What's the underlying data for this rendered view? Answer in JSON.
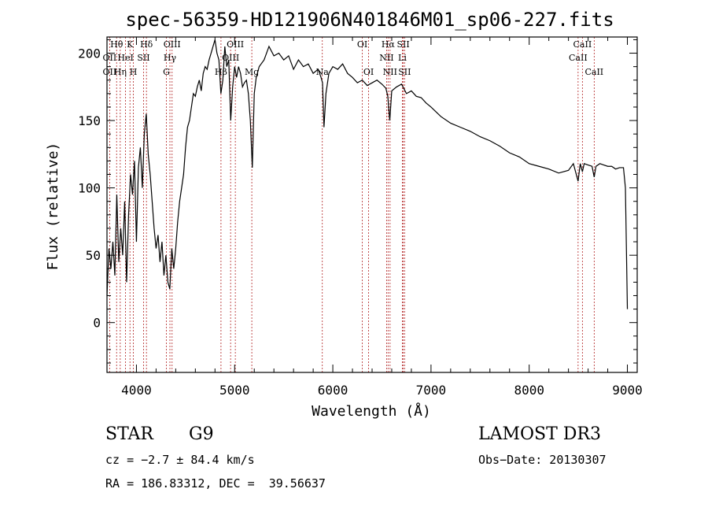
{
  "chart_data": {
    "type": "line",
    "title": "spec-56359-HD121906N401846M01_sp06-227.fits",
    "xlabel": "Wavelength (Å)",
    "ylabel": "Flux (relative)",
    "xlim": [
      3700,
      9100
    ],
    "ylim": [
      -37,
      212
    ],
    "xticks": [
      4000,
      5000,
      6000,
      7000,
      8000,
      9000
    ],
    "yticks": [
      0,
      50,
      100,
      150,
      200
    ],
    "grid": false,
    "series": [
      {
        "x": [
          3700,
          3720,
          3740,
          3760,
          3780,
          3800,
          3820,
          3840,
          3860,
          3880,
          3900,
          3920,
          3940,
          3960,
          3980,
          4000,
          4020,
          4040,
          4060,
          4080,
          4100,
          4120,
          4140,
          4160,
          4180,
          4200,
          4220,
          4240,
          4260,
          4280,
          4300,
          4320,
          4340,
          4360,
          4380,
          4400,
          4420,
          4440,
          4460,
          4480,
          4500,
          4520,
          4540,
          4560,
          4580,
          4600,
          4620,
          4640,
          4660,
          4680,
          4700,
          4720,
          4740,
          4760,
          4780,
          4800,
          4820,
          4840,
          4860,
          4880,
          4900,
          4920,
          4940,
          4960,
          4980,
          5000,
          5020,
          5040,
          5060,
          5080,
          5100,
          5120,
          5140,
          5160,
          5180,
          5200,
          5220,
          5250,
          5300,
          5350,
          5400,
          5450,
          5500,
          5550,
          5600,
          5650,
          5700,
          5750,
          5800,
          5850,
          5880,
          5895,
          5910,
          5930,
          5960,
          6000,
          6050,
          6100,
          6150,
          6200,
          6250,
          6300,
          6350,
          6400,
          6450,
          6500,
          6540,
          6560,
          6580,
          6600,
          6650,
          6700,
          6750,
          6800,
          6850,
          6900,
          6950,
          7000,
          7100,
          7200,
          7300,
          7400,
          7500,
          7600,
          7700,
          7800,
          7900,
          8000,
          8100,
          8200,
          8300,
          8400,
          8450,
          8498,
          8520,
          8542,
          8560,
          8600,
          8640,
          8662,
          8680,
          8720,
          8760,
          8800,
          8840,
          8880,
          8920,
          8960,
          8980,
          9000
        ],
        "y": [
          20,
          55,
          40,
          60,
          35,
          95,
          45,
          70,
          50,
          90,
          30,
          80,
          110,
          95,
          120,
          60,
          115,
          130,
          100,
          140,
          155,
          125,
          110,
          90,
          70,
          55,
          65,
          45,
          60,
          35,
          50,
          30,
          25,
          55,
          40,
          55,
          75,
          90,
          100,
          110,
          130,
          145,
          150,
          160,
          170,
          168,
          175,
          180,
          172,
          185,
          190,
          188,
          195,
          200,
          205,
          210,
          200,
          195,
          170,
          180,
          205,
          190,
          195,
          150,
          175,
          190,
          182,
          190,
          185,
          175,
          178,
          180,
          170,
          150,
          115,
          170,
          182,
          190,
          195,
          205,
          198,
          200,
          195,
          198,
          188,
          195,
          190,
          192,
          185,
          188,
          182,
          178,
          145,
          170,
          185,
          190,
          188,
          192,
          185,
          182,
          178,
          180,
          176,
          178,
          180,
          177,
          174,
          168,
          150,
          172,
          175,
          177,
          170,
          172,
          168,
          167,
          163,
          160,
          153,
          148,
          145,
          142,
          138,
          135,
          131,
          126,
          123,
          118,
          116,
          114,
          111,
          113,
          118,
          105,
          118,
          112,
          118,
          117,
          116,
          108,
          116,
          118,
          117,
          116,
          116,
          114,
          115,
          115,
          100,
          10
        ]
      }
    ],
    "line_labels": [
      {
        "text": "Hθ",
        "x": 3798,
        "row": 0
      },
      {
        "text": "OII",
        "x": 3727,
        "row": 1
      },
      {
        "text": "OII",
        "x": 3727,
        "row": 2
      },
      {
        "text": "K",
        "x": 3934,
        "row": 0
      },
      {
        "text": "HeI",
        "x": 3889,
        "row": 1
      },
      {
        "text": "Hη",
        "x": 3835,
        "row": 2
      },
      {
        "text": "Hδ",
        "x": 4102,
        "row": 0
      },
      {
        "text": "SII",
        "x": 4072,
        "row": 1
      },
      {
        "text": "H",
        "x": 3969,
        "row": 2
      },
      {
        "text": "OIII",
        "x": 4363,
        "row": 0
      },
      {
        "text": "Hγ",
        "x": 4341,
        "row": 1
      },
      {
        "text": "G",
        "x": 4305,
        "row": 2
      },
      {
        "text": "OIII",
        "x": 5007,
        "row": 0
      },
      {
        "text": "OIII",
        "x": 4959,
        "row": 1
      },
      {
        "text": "Hβ",
        "x": 4861,
        "row": 2
      },
      {
        "text": "Mg",
        "x": 5175,
        "row": 2
      },
      {
        "text": "Na",
        "x": 5893,
        "row": 2
      },
      {
        "text": "OI",
        "x": 6300,
        "row": 0
      },
      {
        "text": "OI",
        "x": 6364,
        "row": 2
      },
      {
        "text": "Hα",
        "x": 6563,
        "row": 0
      },
      {
        "text": "NII",
        "x": 6548,
        "row": 1
      },
      {
        "text": "NII",
        "x": 6583,
        "row": 2
      },
      {
        "text": "SII",
        "x": 6717,
        "row": 0
      },
      {
        "text": "Li",
        "x": 6708,
        "row": 1
      },
      {
        "text": "SII",
        "x": 6731,
        "row": 2
      },
      {
        "text": "CaII",
        "x": 8542,
        "row": 0
      },
      {
        "text": "CaII",
        "x": 8498,
        "row": 1
      },
      {
        "text": "CaII",
        "x": 8662,
        "row": 2
      }
    ],
    "marker_lines_x": [
      3727,
      3798,
      3835,
      3889,
      3934,
      3969,
      4072,
      4102,
      4305,
      4341,
      4363,
      4861,
      4959,
      5007,
      5175,
      5893,
      6300,
      6364,
      6548,
      6563,
      6583,
      6708,
      6717,
      6731,
      8498,
      8542,
      8662
    ],
    "colors": {
      "spectrum": "#000000",
      "marker_lines": "#b22222"
    }
  },
  "info": {
    "object_class": "STAR",
    "subclass": "G9",
    "survey": "LAMOST DR3",
    "cz": "cz = −2.7 ± 84.4 km/s",
    "obs_date": "Obs−Date: 20130307",
    "coords": "RA = 186.83312, DEC =  39.56637"
  }
}
